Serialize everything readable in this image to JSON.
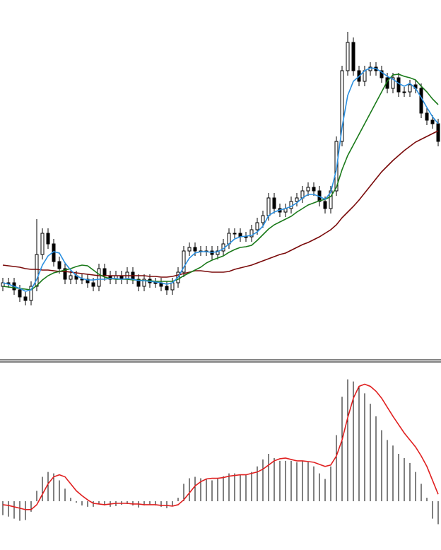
{
  "chart_data": [
    {
      "type": "candlestick",
      "ylim": [
        0,
        505
      ],
      "up_color": "#ffffff",
      "down_color": "#000000",
      "edge_color": "#000000",
      "open": [
        100,
        105,
        105,
        95,
        85,
        80,
        100,
        145,
        175,
        160,
        135,
        125,
        110,
        115,
        110,
        110,
        105,
        100,
        125,
        115,
        110,
        115,
        110,
        120,
        110,
        100,
        110,
        105,
        105,
        100,
        95,
        105,
        120,
        150,
        155,
        150,
        150,
        150,
        145,
        150,
        160,
        175,
        175,
        170,
        170,
        180,
        190,
        200,
        225,
        210,
        205,
        210,
        220,
        225,
        235,
        240,
        235,
        220,
        210,
        235,
        305,
        405,
        445,
        405,
        390,
        405,
        410,
        405,
        395,
        380,
        395,
        375,
        375,
        385,
        380,
        345,
        335,
        330
      ],
      "high": [
        112,
        112,
        112,
        102,
        92,
        107,
        195,
        182,
        182,
        167,
        142,
        132,
        122,
        122,
        117,
        117,
        112,
        132,
        132,
        122,
        122,
        122,
        127,
        127,
        117,
        117,
        117,
        112,
        112,
        107,
        112,
        127,
        157,
        162,
        162,
        157,
        157,
        157,
        157,
        167,
        182,
        182,
        182,
        177,
        187,
        197,
        207,
        232,
        232,
        217,
        217,
        227,
        232,
        242,
        247,
        247,
        242,
        227,
        242,
        312,
        412,
        460,
        452,
        412,
        412,
        417,
        417,
        412,
        402,
        402,
        402,
        382,
        392,
        392,
        387,
        352,
        342,
        337
      ],
      "low": [
        93,
        98,
        88,
        78,
        73,
        73,
        93,
        138,
        153,
        128,
        118,
        103,
        103,
        103,
        103,
        98,
        93,
        93,
        108,
        103,
        103,
        103,
        103,
        103,
        93,
        93,
        98,
        98,
        93,
        88,
        88,
        98,
        113,
        143,
        143,
        143,
        143,
        138,
        138,
        143,
        153,
        168,
        163,
        163,
        163,
        173,
        183,
        193,
        203,
        198,
        198,
        203,
        213,
        218,
        228,
        228,
        213,
        203,
        203,
        228,
        298,
        398,
        398,
        383,
        383,
        398,
        398,
        388,
        373,
        373,
        368,
        368,
        368,
        373,
        338,
        328,
        323,
        298
      ],
      "close": [
        105,
        105,
        95,
        85,
        80,
        100,
        145,
        175,
        160,
        135,
        125,
        110,
        115,
        110,
        110,
        105,
        100,
        125,
        115,
        110,
        115,
        110,
        120,
        110,
        100,
        110,
        105,
        105,
        100,
        95,
        105,
        120,
        150,
        155,
        150,
        150,
        150,
        145,
        150,
        160,
        175,
        175,
        170,
        170,
        180,
        190,
        200,
        225,
        210,
        205,
        210,
        220,
        225,
        235,
        240,
        235,
        220,
        210,
        235,
        305,
        405,
        445,
        405,
        390,
        405,
        410,
        405,
        395,
        380,
        395,
        375,
        375,
        385,
        380,
        345,
        335,
        330,
        305
      ],
      "series": [
        {
          "color": "#7a0a0a",
          "values": [
            130,
            129,
            128,
            127,
            125,
            124,
            124,
            123,
            123,
            122,
            121,
            121,
            120,
            119,
            118,
            117,
            116,
            115,
            115,
            115,
            115,
            115,
            115,
            115,
            115,
            115,
            114,
            114,
            113,
            113,
            114,
            116,
            118,
            120,
            122,
            122,
            121,
            120,
            120,
            120,
            121,
            124,
            126,
            128,
            130,
            133,
            136,
            139,
            142,
            145,
            147,
            151,
            155,
            159,
            162,
            166,
            170,
            175,
            180,
            187,
            197,
            205,
            213,
            222,
            232,
            242,
            252,
            262,
            270,
            278,
            285,
            292,
            298,
            304,
            308,
            312,
            316,
            320
          ]
        },
        {
          "color": "#1a7a1a",
          "values": [
            100,
            99,
            98,
            97,
            96,
            95,
            101,
            109,
            115,
            119,
            121,
            123,
            125,
            128,
            130,
            129,
            123,
            117,
            113,
            111,
            110,
            110,
            110,
            109,
            109,
            108,
            108,
            107,
            107,
            107,
            107,
            110,
            115,
            119,
            123,
            127,
            133,
            137,
            140,
            143,
            148,
            152,
            155,
            156,
            158,
            165,
            173,
            181,
            187,
            191,
            195,
            199,
            205,
            210,
            215,
            218,
            221,
            223,
            227,
            240,
            265,
            285,
            300,
            315,
            330,
            345,
            360,
            375,
            390,
            399,
            400,
            397,
            395,
            392,
            383,
            375,
            365,
            357
          ]
        },
        {
          "color": "#2a8fe0",
          "values": [
            105,
            103,
            100,
            97,
            93,
            95,
            110,
            130,
            143,
            149,
            147,
            133,
            123,
            115,
            111,
            109,
            109,
            110,
            110,
            111,
            111,
            110,
            111,
            110,
            108,
            108,
            107,
            106,
            105,
            103,
            105,
            113,
            127,
            140,
            147,
            149,
            149,
            148,
            149,
            153,
            160,
            167,
            170,
            171,
            172,
            177,
            185,
            200,
            205,
            208,
            210,
            213,
            218,
            225,
            230,
            230,
            227,
            223,
            233,
            265,
            325,
            370,
            390,
            397,
            405,
            409,
            408,
            403,
            397,
            393,
            387,
            383,
            387,
            380,
            367,
            353,
            340,
            330
          ]
        }
      ]
    },
    {
      "type": "bar",
      "ylim": [
        -70,
        200
      ],
      "color": "#000000",
      "values": [
        -20,
        -22,
        -25,
        -28,
        -27,
        -15,
        15,
        35,
        42,
        40,
        30,
        18,
        5,
        -2,
        -6,
        -8,
        -8,
        -4,
        -6,
        -8,
        -7,
        -5,
        -4,
        -6,
        -9,
        -6,
        -5,
        -6,
        -8,
        -10,
        -6,
        5,
        25,
        33,
        35,
        33,
        32,
        30,
        32,
        36,
        40,
        40,
        38,
        38,
        42,
        50,
        60,
        68,
        62,
        58,
        58,
        58,
        56,
        58,
        56,
        50,
        40,
        32,
        50,
        95,
        150,
        175,
        172,
        165,
        155,
        140,
        122,
        102,
        88,
        80,
        68,
        62,
        55,
        42,
        25,
        5,
        -25,
        -33
      ],
      "series": [
        {
          "color": "#e02020",
          "values": [
            -5,
            -6,
            -8,
            -10,
            -12,
            -12,
            -5,
            10,
            25,
            35,
            38,
            35,
            25,
            15,
            8,
            2,
            -3,
            -4,
            -5,
            -4,
            -3,
            -3,
            -3,
            -4,
            -4,
            -5,
            -5,
            -5,
            -6,
            -6,
            -7,
            -5,
            2,
            12,
            22,
            28,
            32,
            33,
            33,
            34,
            36,
            37,
            38,
            38,
            40,
            42,
            46,
            52,
            58,
            61,
            62,
            60,
            58,
            58,
            57,
            56,
            53,
            50,
            52,
            65,
            88,
            120,
            148,
            165,
            168,
            165,
            158,
            148,
            135,
            122,
            110,
            98,
            88,
            78,
            65,
            50,
            30,
            10
          ]
        }
      ]
    }
  ]
}
